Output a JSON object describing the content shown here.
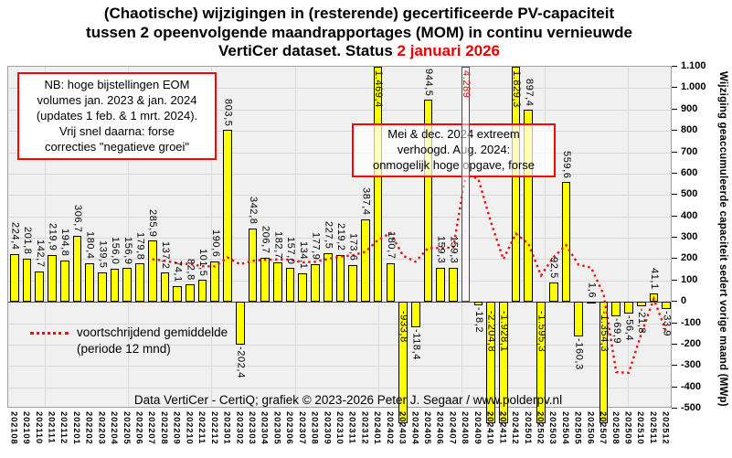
{
  "title": {
    "line1": "(Chaotische) wijzigingen in (resterende) gecertificeerde PV-capaciteit",
    "line2": "tussen 2 opeenvolgende maandrapportages (MOM) in continu vernieuwde",
    "line3_prefix": "VertiCer dataset. Status ",
    "line3_status": "2 januari 2026"
  },
  "annotations": {
    "nb_box": [
      "NB: hoge bijstellingen EOM",
      "volumes jan. 2023 & jan. 2024",
      "(updates 1 feb. & 1 mrt. 2024).",
      "Vrij snel daarna: forse",
      "correcties \"negatieve groei\""
    ],
    "extreme_box": [
      "Mei & dec. 2024 extreem",
      "verhoogd. Aug. 2024:",
      "onmogelijk hoge opgave, forse"
    ]
  },
  "legend": {
    "line1": "voortschrijdend gemiddelde",
    "line2": "(periode 12 mnd)"
  },
  "footer": "Data VertiCer - CertiQ; grafiek © 2023-2026 Peter J. Segaar / www.polderpv.nl",
  "colors": {
    "bar_fill": "#ffff00",
    "bar_outline": "#000000",
    "highlight_red": "#ff0000",
    "moving_average_line": "#e81111",
    "status_date_red": "#e80000"
  },
  "y_axis": {
    "title": "Wijziging geaccumuleerde capaciteit sedert vorige maand (MWp)",
    "min": -500,
    "max": 1100,
    "tick_step": 100,
    "tick_labels": [
      "1.100",
      "1.000",
      "900",
      "800",
      "700",
      "600",
      "500",
      "400",
      "300",
      "200",
      "100",
      "0",
      "-100",
      "-200",
      "-300",
      "-400",
      "-500"
    ]
  },
  "chart_data": {
    "type": "bar",
    "title": "(Chaotische) wijzigingen in (resterende) gecertificeerde PV-capaciteit tussen 2 opeenvolgende maandrapportages (MOM) in continu vernieuwde VertiCer dataset. Status 2 januari 2026",
    "ylabel": "Wijziging geaccumuleerde capaciteit sedert vorige maand (MWp)",
    "ylim": [
      -500,
      1100
    ],
    "grid": true,
    "categories": [
      "202108",
      "202109",
      "202110",
      "202111",
      "202112",
      "202201",
      "202202",
      "202203",
      "202204",
      "202205",
      "202206",
      "202207",
      "202208",
      "202209",
      "202210",
      "202211",
      "202212",
      "202301",
      "202302",
      "202303",
      "202304",
      "202305",
      "202306",
      "202307",
      "202308",
      "202309",
      "202310",
      "202311",
      "202312",
      "202401",
      "202402",
      "202403",
      "202404",
      "202405",
      "202406",
      "202407",
      "202408",
      "202409",
      "202410",
      "202411",
      "202412",
      "202501",
      "202502",
      "202503",
      "202504",
      "202505",
      "202506",
      "202507",
      "202508",
      "202509",
      "202510",
      "202511",
      "202512"
    ],
    "values": [
      224.4,
      201.8,
      142.7,
      219.9,
      194.8,
      306.7,
      180.4,
      139.5,
      156.0,
      156.9,
      179.8,
      285.9,
      137.2,
      74.1,
      82.8,
      101.5,
      190.6,
      803.5,
      -202.4,
      342.8,
      206.7,
      182.7,
      157.0,
      134.1,
      177.9,
      227.5,
      219.2,
      173.6,
      387.4,
      1469.4,
      180.7,
      -933.8,
      -118.4,
      944.5,
      159.3,
      159.3,
      4289,
      -18.2,
      -2204.8,
      -1928.1,
      1829.3,
      897.4,
      -1595.3,
      92.5,
      559.6,
      -160.3,
      1.6,
      -1354.3,
      -69.9,
      -56.4,
      -21.8,
      41.1,
      -33.9
    ],
    "value_labels": [
      "224,4",
      "201,8",
      "142,7",
      "219,9",
      "194,8",
      "306,7",
      "180,4",
      "139,5",
      "156,0",
      "156,9",
      "179,8",
      "285,9",
      "137,2",
      "74,1",
      "82,8",
      "101,5",
      "190,6",
      "803,5",
      "-202,4",
      "342,8",
      "206,7",
      "182,7",
      "157,0",
      "134,1",
      "177,9",
      "227,5",
      "219,2",
      "173,6",
      "387,4",
      "1.469,4",
      "180,7",
      "-933,8",
      "-118,4",
      "944,5",
      "159,3",
      "159,3",
      "4.289",
      "-18,2",
      "-2.204,8",
      "-1.928,1",
      "1.829,3",
      "897,4",
      "-1.595,3",
      "92,5",
      "559,6",
      "-160,3",
      "1,6",
      "-1.354,3",
      "-69,9",
      "-56,4",
      "-21,8",
      "41,1",
      "-33,9"
    ],
    "highlight_month": "202408",
    "moving_average": {
      "type": "trailing",
      "window_months": 12,
      "legend": "voortschrijdend gemiddelde (periode 12 mnd)"
    }
  }
}
